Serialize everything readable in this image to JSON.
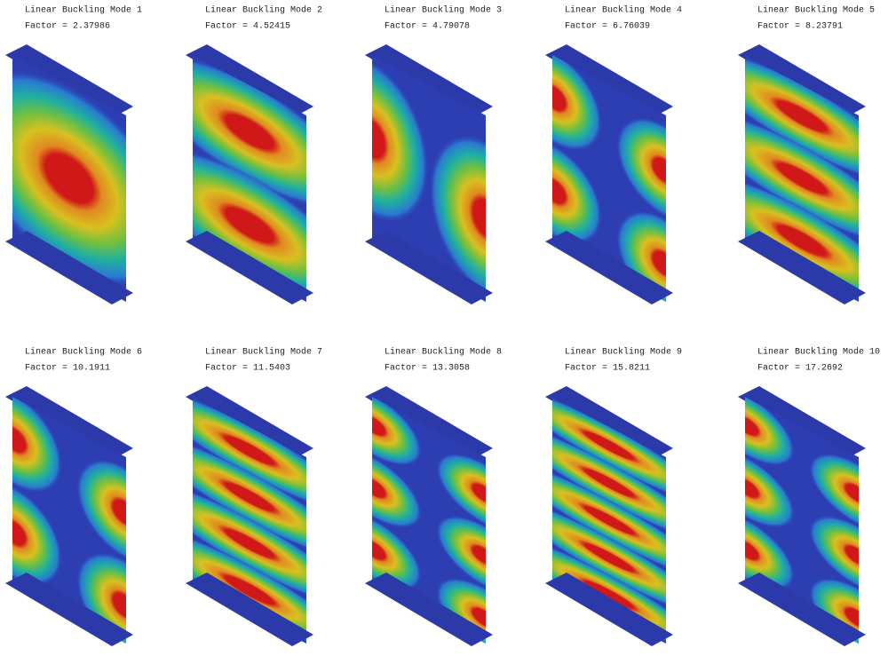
{
  "panels": [
    {
      "title": "Linear Buckling Mode 1",
      "factor": "Factor = 2.37986"
    },
    {
      "title": "Linear Buckling Mode 2",
      "factor": "Factor = 4.52415"
    },
    {
      "title": "Linear Buckling Mode 3",
      "factor": "Factor = 4.79078"
    },
    {
      "title": "Linear Buckling Mode 4",
      "factor": "Factor = 6.76039"
    },
    {
      "title": "Linear Buckling Mode 5",
      "factor": "Factor = 8.23791"
    },
    {
      "title": "Linear Buckling Mode 6",
      "factor": "Factor = 10.1911"
    },
    {
      "title": "Linear Buckling Mode 7",
      "factor": "Factor = 11.5403"
    },
    {
      "title": "Linear Buckling Mode 8",
      "factor": "Factor = 13.3058"
    },
    {
      "title": "Linear Buckling Mode 9",
      "factor": "Factor = 15.8211"
    },
    {
      "title": "Linear Buckling Mode 10",
      "factor": "Factor = 17.2692"
    }
  ]
}
